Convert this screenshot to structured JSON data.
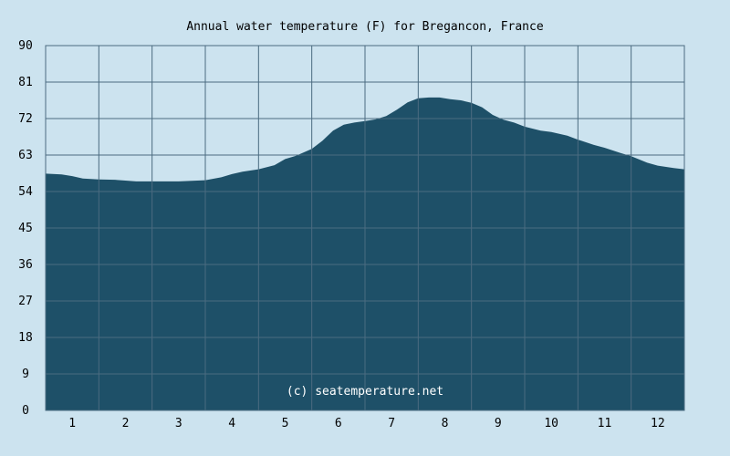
{
  "chart_data": {
    "type": "area",
    "title": "Annual water temperature (F) for Bregancon, France",
    "xlabel": "",
    "ylabel": "",
    "ylim": [
      0,
      90
    ],
    "yticks": [
      "0",
      "9",
      "18",
      "27",
      "36",
      "45",
      "54",
      "63",
      "72",
      "81",
      "90"
    ],
    "xticks": [
      "1",
      "2",
      "3",
      "4",
      "5",
      "6",
      "7",
      "8",
      "9",
      "10",
      "11",
      "12"
    ],
    "xlim": [
      0.5,
      12.5
    ],
    "grid": true,
    "watermark": "(c) seatemperature.net",
    "colors": {
      "background": "#cce3ef",
      "fill": "#1e5068",
      "grid": "#4b6b80"
    },
    "series": [
      {
        "x": [
          0.5,
          0.8,
          1.0,
          1.2,
          1.5,
          1.8,
          2.0,
          2.2,
          2.5,
          2.8,
          3.0,
          3.2,
          3.5,
          3.8,
          4.0,
          4.2,
          4.5,
          4.8,
          5.0,
          5.2,
          5.5,
          5.7,
          5.9,
          6.1,
          6.3,
          6.5,
          6.7,
          6.9,
          7.1,
          7.3,
          7.5,
          7.7,
          7.9,
          8.1,
          8.3,
          8.5,
          8.7,
          8.9,
          9.1,
          9.3,
          9.5,
          9.8,
          10.0,
          10.3,
          10.5,
          10.8,
          11.0,
          11.3,
          11.5,
          11.8,
          12.0,
          12.3,
          12.5
        ],
        "values": [
          58.4,
          58.2,
          57.8,
          57.2,
          57.0,
          56.9,
          56.7,
          56.5,
          56.5,
          56.5,
          56.5,
          56.6,
          56.8,
          57.5,
          58.3,
          58.9,
          59.5,
          60.5,
          62.0,
          62.8,
          64.5,
          66.5,
          69.0,
          70.5,
          71.0,
          71.4,
          71.8,
          72.6,
          74.2,
          76.0,
          77.0,
          77.2,
          77.2,
          76.8,
          76.5,
          75.9,
          74.8,
          72.9,
          71.7,
          71.0,
          70.0,
          69.0,
          68.7,
          67.8,
          66.8,
          65.5,
          64.8,
          63.5,
          62.7,
          61.1,
          60.4,
          59.8,
          59.5
        ]
      }
    ]
  }
}
